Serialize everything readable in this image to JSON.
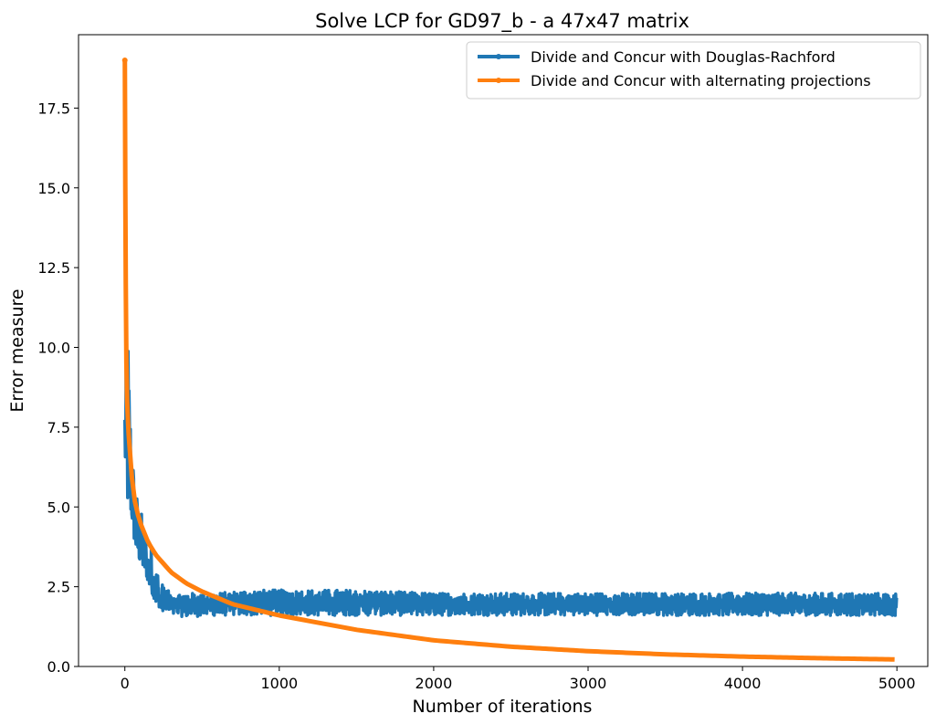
{
  "chart_data": {
    "type": "line",
    "title": "Solve LCP for GD97_b - a 47x47 matrix",
    "xlabel": "Number of iterations",
    "ylabel": "Error measure",
    "xlim": [
      -300,
      5200
    ],
    "ylim": [
      0,
      19.8
    ],
    "xticks": [
      0,
      1000,
      2000,
      3000,
      4000,
      5000
    ],
    "xtick_labels": [
      "0",
      "1000",
      "2000",
      "3000",
      "4000",
      "5000"
    ],
    "yticks": [
      0,
      2.5,
      5,
      7.5,
      10,
      12.5,
      15,
      17.5
    ],
    "ytick_labels": [
      "0.0",
      "2.5",
      "5.0",
      "7.5",
      "10.0",
      "12.5",
      "15.0",
      "17.5"
    ],
    "grid": false,
    "legend_position": "top-right",
    "series": [
      {
        "name": "Divide and Concur with Douglas-Rachford",
        "color": "#1f77b4",
        "style": "noisy-band",
        "x": [
          0,
          10,
          20,
          30,
          40,
          50,
          60,
          80,
          100,
          130,
          160,
          200,
          250,
          300,
          400,
          600,
          800,
          1000,
          1500,
          2000,
          3000,
          4000,
          5000
        ],
        "low": [
          6.9,
          5.0,
          5.2,
          5.1,
          4.8,
          4.5,
          4.0,
          3.5,
          3.3,
          3.0,
          2.5,
          2.0,
          1.7,
          1.6,
          1.55,
          1.6,
          1.6,
          1.6,
          1.6,
          1.6,
          1.6,
          1.6,
          1.6
        ],
        "high": [
          9.0,
          11.0,
          11.5,
          10.0,
          8.5,
          7.0,
          6.5,
          5.5,
          5.0,
          4.5,
          4.0,
          3.5,
          2.5,
          2.3,
          2.3,
          2.3,
          2.4,
          2.4,
          2.4,
          2.3,
          2.3,
          2.3,
          2.3
        ]
      },
      {
        "name": "Divide and Concur with alternating projections",
        "color": "#ff7f0e",
        "style": "line",
        "x": [
          0,
          3,
          6,
          10,
          15,
          20,
          30,
          40,
          50,
          70,
          100,
          150,
          200,
          300,
          400,
          500,
          700,
          1000,
          1500,
          2000,
          2500,
          3000,
          3500,
          4000,
          4500,
          5000
        ],
        "y": [
          19.0,
          15.0,
          12.0,
          9.5,
          8.3,
          7.7,
          6.8,
          6.2,
          5.7,
          5.0,
          4.5,
          3.9,
          3.5,
          2.95,
          2.6,
          2.35,
          1.95,
          1.6,
          1.15,
          0.82,
          0.62,
          0.48,
          0.38,
          0.31,
          0.26,
          0.22
        ]
      }
    ]
  }
}
